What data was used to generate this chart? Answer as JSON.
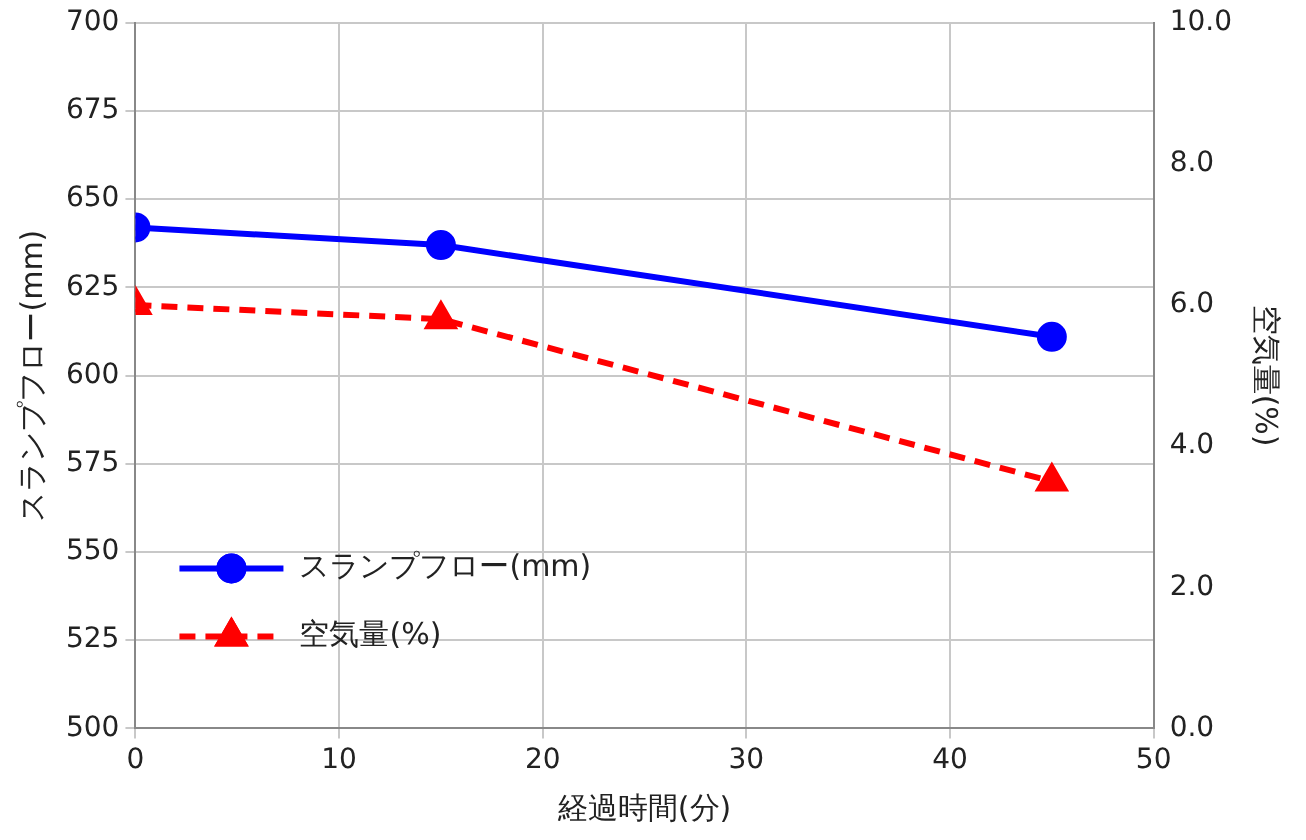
{
  "chart_data": {
    "type": "line",
    "xlabel": "経過時間(分)",
    "ylabel": "スランプフロー(mm)",
    "y2label": "空気量(%)",
    "x": [
      0,
      15,
      45
    ],
    "series": [
      {
        "name": "スランプフロー(mm)",
        "color": "#0000ff",
        "values": [
          642,
          637,
          611
        ],
        "marker": "circle",
        "line_style": "solid"
      },
      {
        "name": "空気量(%)",
        "color": "#ff0000",
        "values": [
          6.0,
          5.8,
          3.5
        ],
        "marker": "triangle",
        "line_style": "dashed",
        "axis": "y2"
      }
    ],
    "xlim": [
      0,
      50
    ],
    "xticks": [
      0,
      10,
      20,
      30,
      40,
      50
    ],
    "ylim": [
      500,
      700
    ],
    "yticks": [
      500,
      525,
      550,
      575,
      600,
      625,
      650,
      675,
      700
    ],
    "y2lim": [
      0,
      10
    ],
    "y2ticks": [
      {
        "value": 0,
        "label": "0.0"
      },
      {
        "value": 2,
        "label": "2.0"
      },
      {
        "value": 4,
        "label": "4.0"
      },
      {
        "value": 6,
        "label": "6.0"
      },
      {
        "value": 8,
        "label": "8.0"
      },
      {
        "value": 10,
        "label": "10.0"
      }
    ],
    "grid": true,
    "legend": "bottom left"
  }
}
